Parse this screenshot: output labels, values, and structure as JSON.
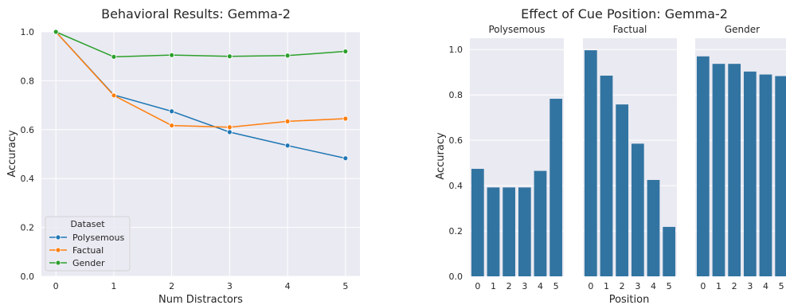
{
  "chart_data": [
    {
      "type": "line",
      "title": "Behavioral Results: Gemma-2",
      "xlabel": "Num Distractors",
      "ylabel": "Accuracy",
      "x": [
        0,
        1,
        2,
        3,
        4,
        5
      ],
      "xlim": [
        -0.25,
        5.25
      ],
      "ylim": [
        0,
        1
      ],
      "xticks": [
        "0",
        "1",
        "2",
        "3",
        "4",
        "5"
      ],
      "yticks": [
        "0.0",
        "0.2",
        "0.4",
        "0.6",
        "0.8",
        "1.0"
      ],
      "grid": true,
      "legend": {
        "title": "Dataset",
        "placement": "lower-left"
      },
      "series": [
        {
          "name": "Polysemous",
          "color": "#1f77b4",
          "values": [
            1.0,
            0.742,
            0.675,
            0.59,
            0.535,
            0.483
          ]
        },
        {
          "name": "Factual",
          "color": "#ff7f0e",
          "values": [
            1.0,
            0.74,
            0.617,
            0.61,
            0.634,
            0.645
          ]
        },
        {
          "name": "Gender",
          "color": "#2ca02c",
          "values": [
            1.0,
            0.898,
            0.905,
            0.9,
            0.903,
            0.92
          ]
        }
      ]
    },
    {
      "type": "bar",
      "title": "Effect of Cue Position: Gemma-2",
      "xlabel": "Position",
      "ylabel": "Accuracy",
      "ylim": [
        0,
        1.05
      ],
      "yticks": [
        "0.0",
        "0.2",
        "0.4",
        "0.6",
        "0.8",
        "1.0"
      ],
      "categories": [
        "0",
        "1",
        "2",
        "3",
        "4",
        "5"
      ],
      "bar_color": "#3274a1",
      "grid": true,
      "panels": [
        {
          "name": "Polysemous",
          "values": [
            0.474,
            0.392,
            0.392,
            0.392,
            0.465,
            0.783
          ]
        },
        {
          "name": "Factual",
          "values": [
            0.997,
            0.885,
            0.758,
            0.585,
            0.425,
            0.218
          ]
        },
        {
          "name": "Gender",
          "values": [
            0.97,
            0.937,
            0.937,
            0.903,
            0.89,
            0.883
          ]
        }
      ]
    }
  ]
}
